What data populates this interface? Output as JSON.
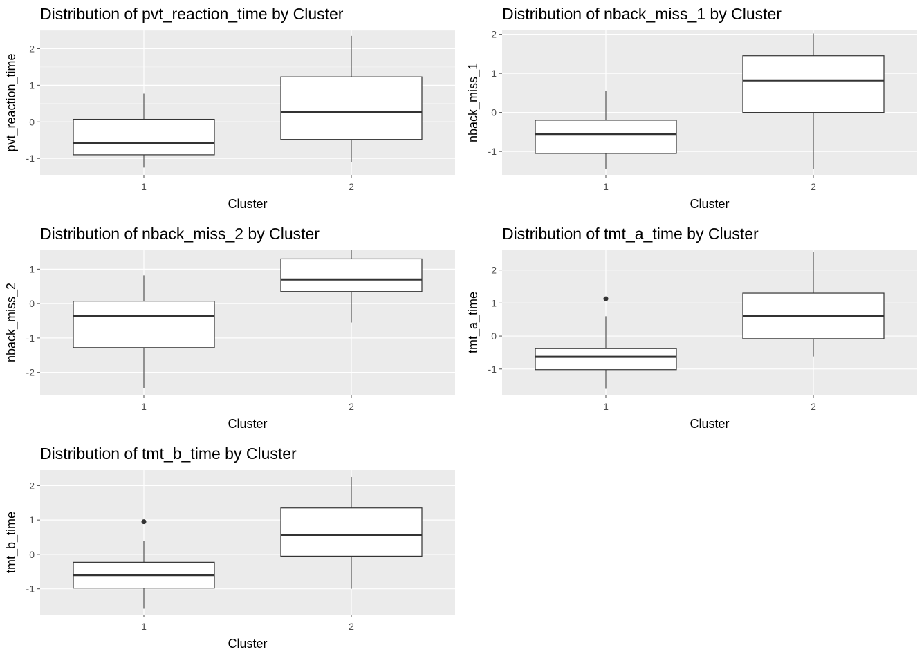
{
  "colors": {
    "panel_background": "#ebebeb",
    "grid_major": "#ffffff",
    "box_fill": "#ffffff",
    "box_line": "#333333",
    "tick_text": "#4d4d4d"
  },
  "chart_data": [
    {
      "type": "boxplot",
      "title": "Distribution of pvt_reaction_time by Cluster",
      "xlabel": "Cluster",
      "ylabel": "pvt_reaction_time",
      "categories": [
        "1",
        "2"
      ],
      "ylim": [
        -1.45,
        2.5
      ],
      "yticks": [
        -1,
        0,
        1,
        2
      ],
      "ytick_labels": [
        "-1",
        "0",
        "1",
        "2"
      ],
      "grid": true,
      "boxes": [
        {
          "category": "1",
          "whisker_low": -1.25,
          "q1": -0.9,
          "median": -0.58,
          "q3": 0.07,
          "whisker_high": 0.77,
          "outliers": []
        },
        {
          "category": "2",
          "whisker_low": -1.1,
          "q1": -0.48,
          "median": 0.27,
          "q3": 1.23,
          "whisker_high": 2.35,
          "outliers": []
        }
      ]
    },
    {
      "type": "boxplot",
      "title": "Distribution of nback_miss_1 by Cluster",
      "xlabel": "Cluster",
      "ylabel": "nback_miss_1",
      "categories": [
        "1",
        "2"
      ],
      "ylim": [
        -1.6,
        2.1
      ],
      "yticks": [
        -1,
        0,
        1,
        2
      ],
      "ytick_labels": [
        "-1",
        "0",
        "1",
        "2"
      ],
      "grid": true,
      "boxes": [
        {
          "category": "1",
          "whisker_low": -1.45,
          "q1": -1.05,
          "median": -0.55,
          "q3": -0.2,
          "whisker_high": 0.55,
          "outliers": []
        },
        {
          "category": "2",
          "whisker_low": -1.45,
          "q1": 0.0,
          "median": 0.82,
          "q3": 1.45,
          "whisker_high": 2.02,
          "outliers": []
        }
      ]
    },
    {
      "type": "boxplot",
      "title": "Distribution of nback_miss_2 by Cluster",
      "xlabel": "Cluster",
      "ylabel": "nback_miss_2",
      "categories": [
        "1",
        "2"
      ],
      "ylim": [
        -2.65,
        1.55
      ],
      "yticks": [
        -2,
        -1,
        0,
        1
      ],
      "ytick_labels": [
        "-2",
        "-1",
        "0",
        "1"
      ],
      "grid": true,
      "boxes": [
        {
          "category": "1",
          "whisker_low": -2.45,
          "q1": -1.28,
          "median": -0.35,
          "q3": 0.07,
          "whisker_high": 0.82,
          "outliers": []
        },
        {
          "category": "2",
          "whisker_low": -0.55,
          "q1": 0.35,
          "median": 0.7,
          "q3": 1.3,
          "whisker_high": 1.55,
          "outliers": []
        }
      ]
    },
    {
      "type": "boxplot",
      "title": "Distribution of tmt_a_time by Cluster",
      "xlabel": "Cluster",
      "ylabel": "tmt_a_time",
      "categories": [
        "1",
        "2"
      ],
      "ylim": [
        -1.78,
        2.6
      ],
      "yticks": [
        -1,
        0,
        1,
        2
      ],
      "ytick_labels": [
        "-1",
        "0",
        "1",
        "2"
      ],
      "grid": true,
      "boxes": [
        {
          "category": "1",
          "whisker_low": -1.58,
          "q1": -1.02,
          "median": -0.63,
          "q3": -0.38,
          "whisker_high": 0.6,
          "outliers": [
            1.13
          ]
        },
        {
          "category": "2",
          "whisker_low": -0.62,
          "q1": -0.08,
          "median": 0.62,
          "q3": 1.3,
          "whisker_high": 2.55,
          "outliers": []
        }
      ]
    },
    {
      "type": "boxplot",
      "title": "Distribution of tmt_b_time by Cluster",
      "xlabel": "Cluster",
      "ylabel": "tmt_b_time",
      "categories": [
        "1",
        "2"
      ],
      "ylim": [
        -1.75,
        2.45
      ],
      "yticks": [
        -1,
        0,
        1,
        2
      ],
      "ytick_labels": [
        "-1",
        "0",
        "1",
        "2"
      ],
      "grid": true,
      "boxes": [
        {
          "category": "1",
          "whisker_low": -1.58,
          "q1": -0.98,
          "median": -0.6,
          "q3": -0.23,
          "whisker_high": 0.4,
          "outliers": [
            0.95
          ]
        },
        {
          "category": "2",
          "whisker_low": -1.0,
          "q1": -0.05,
          "median": 0.57,
          "q3": 1.35,
          "whisker_high": 2.25,
          "outliers": []
        }
      ]
    }
  ]
}
